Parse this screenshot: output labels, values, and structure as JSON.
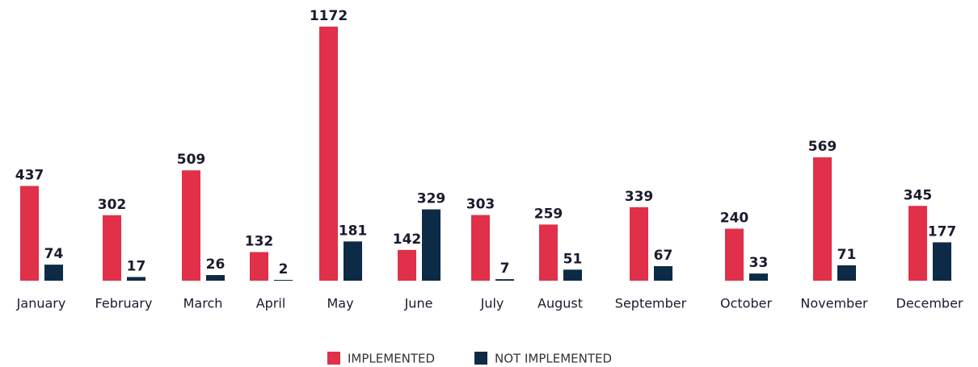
{
  "chart_data": {
    "type": "bar",
    "categories": [
      "January",
      "February",
      "March",
      "April",
      "May",
      "June",
      "July",
      "August",
      "September",
      "October",
      "November",
      "December"
    ],
    "series": [
      {
        "name": "IMPLEMENTED",
        "color": "#e0304a",
        "values": [
          437,
          302,
          509,
          132,
          1172,
          142,
          303,
          259,
          339,
          240,
          569,
          345
        ]
      },
      {
        "name": "NOT IMPLEMENTED",
        "color": "#0d2a47",
        "values": [
          74,
          17,
          26,
          2,
          181,
          329,
          7,
          51,
          67,
          33,
          71,
          177
        ]
      }
    ]
  }
}
